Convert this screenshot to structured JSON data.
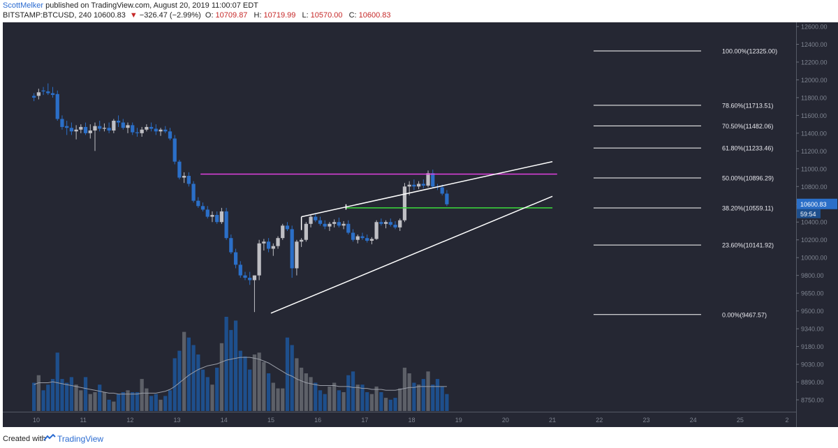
{
  "header": {
    "author": "ScottMelker",
    "published": "published on TradingView.com, August 20, 2019 11:00:07 EDT",
    "symbol": "BITSTAMP:BTCUSD, 240",
    "last": "10600.83",
    "change_arrow": "▼",
    "change": "−326.47 (−2.99%)",
    "o_label": "O:",
    "o_value": "10709.87",
    "h_label": "H:",
    "h_value": "10719.99",
    "l_label": "L:",
    "l_value": "10570.00",
    "c_label": "C:",
    "c_value": "10600.83"
  },
  "footer": {
    "created": "Created with",
    "brand": "TradingView"
  },
  "colors": {
    "background": "#252733",
    "bull": "#bfbfc4",
    "bear": "#2b6fc8",
    "fib": "#ffffff",
    "resistance": "#e040e0",
    "support": "#3cdc3c",
    "price_badge": "#2b6fc8"
  },
  "price_badge": {
    "price": "10600.83",
    "countdown": "59:54"
  },
  "chart_data": {
    "type": "candlestick",
    "symbol": "BITSTAMP:BTCUSD",
    "interval": "240",
    "x_tick_labels": [
      "10",
      "11",
      "12",
      "13",
      "14",
      "15",
      "16",
      "17",
      "18",
      "19",
      "20",
      "21",
      "22",
      "23",
      "24",
      "25",
      "2"
    ],
    "y_tick_labels": [
      "12600.00",
      "12400.00",
      "12200.00",
      "12000.00",
      "11800.00",
      "11600.00",
      "11400.00",
      "11200.00",
      "11000.00",
      "10800.00",
      "10600.00",
      "10400.00",
      "10200.00",
      "10000.00",
      "9800.00",
      "9650.00",
      "9500.00",
      "9340.00",
      "9180.00",
      "9030.00",
      "8890.00",
      "8750.00"
    ],
    "y_tick_values": [
      12600,
      12400,
      12200,
      12000,
      11800,
      11600,
      11400,
      11200,
      11000,
      10800,
      10600,
      10400,
      10200,
      10000,
      9800,
      9650,
      9500,
      9340,
      9180,
      9030,
      8890,
      8750
    ],
    "fib_levels": [
      {
        "label": "100.00%(12325.00)",
        "price": 12325.0
      },
      {
        "label": "78.60%(11713.51)",
        "price": 11713.51
      },
      {
        "label": "70.50%(11482.06)",
        "price": 11482.06
      },
      {
        "label": "61.80%(11233.46)",
        "price": 11233.46
      },
      {
        "label": "50.00%(10896.29)",
        "price": 10896.29
      },
      {
        "label": "38.20%(10559.11)",
        "price": 10559.11
      },
      {
        "label": "23.60%(10141.92)",
        "price": 10141.92
      },
      {
        "label": "0.00%(9467.57)",
        "price": 9467.57
      }
    ],
    "horizontal_lines": [
      {
        "name": "resistance",
        "price": 10940,
        "from_day": 13.5,
        "to_day": 21.1
      },
      {
        "name": "support",
        "price": 10560,
        "from_day": 16.6,
        "to_day": 21.0
      }
    ],
    "wedge": {
      "upper": [
        [
          15.65,
          10460
        ],
        [
          21.0,
          11080
        ]
      ],
      "lower": [
        [
          15.0,
          9480
        ],
        [
          21.0,
          10690
        ]
      ],
      "upper_extra": [
        [
          15.65,
          10460
        ],
        [
          15.65,
          10310
        ]
      ]
    },
    "candles": [
      [
        9.95,
        11820,
        11850,
        11760,
        11800
      ],
      [
        10.05,
        11820,
        11900,
        11780,
        11860
      ],
      [
        10.15,
        11880,
        11920,
        11830,
        11870
      ],
      [
        10.25,
        11870,
        11960,
        11830,
        11850
      ],
      [
        10.35,
        11850,
        11920,
        11800,
        11830
      ],
      [
        10.45,
        11840,
        11880,
        11540,
        11560
      ],
      [
        10.55,
        11560,
        11600,
        11440,
        11470
      ],
      [
        10.65,
        11480,
        11540,
        11380,
        11460
      ],
      [
        10.75,
        11460,
        11520,
        11380,
        11420
      ],
      [
        10.85,
        11420,
        11490,
        11330,
        11440
      ],
      [
        10.95,
        11440,
        11500,
        11400,
        11470
      ],
      [
        11.05,
        11470,
        11520,
        11380,
        11400
      ],
      [
        11.15,
        11400,
        11500,
        11340,
        11430
      ],
      [
        11.25,
        11430,
        11520,
        11200,
        11480
      ],
      [
        11.35,
        11480,
        11540,
        11420,
        11450
      ],
      [
        11.45,
        11450,
        11510,
        11420,
        11460
      ],
      [
        11.55,
        11460,
        11520,
        11400,
        11430
      ],
      [
        11.65,
        11430,
        11560,
        11400,
        11540
      ],
      [
        11.75,
        11540,
        11600,
        11470,
        11520
      ],
      [
        11.85,
        11520,
        11560,
        11440,
        11460
      ],
      [
        11.95,
        11460,
        11520,
        11400,
        11490
      ],
      [
        12.05,
        11490,
        11520,
        11380,
        11410
      ],
      [
        12.15,
        11410,
        11460,
        11360,
        11400
      ],
      [
        12.25,
        11400,
        11470,
        11360,
        11440
      ],
      [
        12.35,
        11440,
        11500,
        11420,
        11470
      ],
      [
        12.45,
        11470,
        11520,
        11420,
        11450
      ],
      [
        12.55,
        11450,
        11500,
        11380,
        11420
      ],
      [
        12.65,
        11420,
        11460,
        11370,
        11440
      ],
      [
        12.75,
        11440,
        11480,
        11400,
        11420
      ],
      [
        12.85,
        11420,
        11460,
        11320,
        11340
      ],
      [
        12.95,
        11340,
        11380,
        11050,
        11080
      ],
      [
        13.05,
        11080,
        11100,
        10880,
        10900
      ],
      [
        13.15,
        10900,
        10960,
        10840,
        10920
      ],
      [
        13.25,
        10920,
        10960,
        10800,
        10830
      ],
      [
        13.35,
        10830,
        10860,
        10620,
        10640
      ],
      [
        13.45,
        10640,
        10680,
        10560,
        10580
      ],
      [
        13.55,
        10580,
        10620,
        10520,
        10540
      ],
      [
        13.65,
        10540,
        10580,
        10440,
        10460
      ],
      [
        13.75,
        10460,
        10520,
        10400,
        10480
      ],
      [
        13.85,
        10480,
        10520,
        10380,
        10400
      ],
      [
        13.95,
        10400,
        10560,
        10380,
        10520
      ],
      [
        14.05,
        10520,
        10560,
        10200,
        10220
      ],
      [
        14.15,
        10220,
        10260,
        10040,
        10060
      ],
      [
        14.25,
        10060,
        10100,
        9880,
        9920
      ],
      [
        14.35,
        9920,
        9960,
        9780,
        9800
      ],
      [
        14.45,
        9800,
        9840,
        9760,
        9780
      ],
      [
        14.55,
        9780,
        9840,
        9720,
        9760
      ],
      [
        14.65,
        9760,
        9800,
        9490,
        9800
      ],
      [
        14.75,
        9800,
        10200,
        9760,
        10160
      ],
      [
        14.85,
        10160,
        10210,
        10080,
        10180
      ],
      [
        14.95,
        10180,
        10220,
        10060,
        10100
      ],
      [
        15.05,
        10100,
        10160,
        10020,
        10130
      ],
      [
        15.15,
        10130,
        10240,
        10100,
        10220
      ],
      [
        15.25,
        10220,
        10380,
        10200,
        10360
      ],
      [
        15.35,
        10360,
        10400,
        10300,
        10320
      ],
      [
        15.45,
        10320,
        10360,
        9780,
        9880
      ],
      [
        15.55,
        9880,
        10200,
        9800,
        10180
      ],
      [
        15.65,
        10180,
        10220,
        10120,
        10200
      ],
      [
        15.75,
        10200,
        10400,
        10180,
        10380
      ],
      [
        15.85,
        10380,
        10480,
        10340,
        10460
      ],
      [
        15.95,
        10460,
        10500,
        10400,
        10420
      ],
      [
        16.05,
        10420,
        10460,
        10360,
        10380
      ],
      [
        16.15,
        10380,
        10420,
        10320,
        10350
      ],
      [
        16.25,
        10350,
        10400,
        10300,
        10380
      ],
      [
        16.35,
        10380,
        10430,
        10340,
        10400
      ],
      [
        16.45,
        10400,
        10450,
        10340,
        10360
      ],
      [
        16.55,
        10360,
        10410,
        10320,
        10380
      ],
      [
        16.65,
        10380,
        10420,
        10260,
        10280
      ],
      [
        16.75,
        10280,
        10320,
        10180,
        10200
      ],
      [
        16.85,
        10200,
        10260,
        10160,
        10240
      ],
      [
        16.95,
        10240,
        10280,
        10200,
        10220
      ],
      [
        17.05,
        10220,
        10260,
        10170,
        10190
      ],
      [
        17.15,
        10190,
        10230,
        10150,
        10210
      ],
      [
        17.25,
        10210,
        10420,
        10200,
        10400
      ],
      [
        17.35,
        10400,
        10440,
        10360,
        10380
      ],
      [
        17.45,
        10380,
        10420,
        10330,
        10400
      ],
      [
        17.55,
        10400,
        10440,
        10350,
        10370
      ],
      [
        17.65,
        10370,
        10410,
        10320,
        10340
      ],
      [
        17.75,
        10340,
        10440,
        10300,
        10420
      ],
      [
        17.85,
        10420,
        10840,
        10400,
        10800
      ],
      [
        17.95,
        10800,
        10860,
        10700,
        10820
      ],
      [
        18.05,
        10820,
        10880,
        10760,
        10800
      ],
      [
        18.15,
        10800,
        10860,
        10770,
        10830
      ],
      [
        18.25,
        10830,
        10880,
        10780,
        10810
      ],
      [
        18.35,
        10810,
        10980,
        10790,
        10950
      ],
      [
        18.45,
        10950,
        10990,
        10780,
        10800
      ],
      [
        18.55,
        10800,
        10830,
        10760,
        10790
      ],
      [
        18.65,
        10790,
        10820,
        10700,
        10720
      ],
      [
        18.75,
        10720,
        10760,
        10580,
        10600
      ]
    ],
    "volume_ma_note": "volume histogram with moving average line",
    "volume": [
      0.3,
      0.38,
      0.22,
      0.28,
      0.34,
      0.62,
      0.34,
      0.3,
      0.36,
      0.28,
      0.22,
      0.36,
      0.18,
      0.2,
      0.28,
      0.2,
      0.12,
      0.1,
      0.18,
      0.2,
      0.22,
      0.2,
      0.2,
      0.34,
      0.24,
      0.16,
      0.18,
      0.12,
      0.16,
      0.22,
      0.56,
      0.64,
      0.84,
      0.78,
      0.7,
      0.6,
      0.44,
      0.36,
      0.28,
      0.46,
      0.72,
      1.0,
      0.86,
      0.96,
      0.64,
      0.58,
      0.44,
      0.6,
      0.62,
      0.52,
      0.4,
      0.3,
      0.24,
      0.24,
      0.78,
      0.7,
      0.56,
      0.46,
      0.4,
      0.36,
      0.3,
      0.22,
      0.18,
      0.26,
      0.3,
      0.22,
      0.2,
      0.38,
      0.42,
      0.28,
      0.28,
      0.2,
      0.18,
      0.26,
      0.2,
      0.14,
      0.12,
      0.14,
      0.24,
      0.46,
      0.4,
      0.3,
      0.28,
      0.34,
      0.42,
      0.28,
      0.34,
      0.26,
      0.18
    ],
    "volume_ma": [
      0.28,
      0.3,
      0.3,
      0.3,
      0.31,
      0.3,
      0.29,
      0.28,
      0.27,
      0.26,
      0.25,
      0.24,
      0.23,
      0.22,
      0.21,
      0.2,
      0.19,
      0.19,
      0.18,
      0.18,
      0.18,
      0.18,
      0.18,
      0.19,
      0.19,
      0.19,
      0.19,
      0.2,
      0.21,
      0.23,
      0.26,
      0.3,
      0.34,
      0.38,
      0.41,
      0.44,
      0.46,
      0.48,
      0.49,
      0.5,
      0.52,
      0.54,
      0.55,
      0.56,
      0.57,
      0.57,
      0.57,
      0.56,
      0.55,
      0.53,
      0.51,
      0.48,
      0.45,
      0.42,
      0.39,
      0.37,
      0.34,
      0.32,
      0.3,
      0.29,
      0.28,
      0.27,
      0.27,
      0.27,
      0.27,
      0.26,
      0.26,
      0.26,
      0.25,
      0.25,
      0.24,
      0.24,
      0.23,
      0.23,
      0.23,
      0.22,
      0.22,
      0.22,
      0.23,
      0.24,
      0.25,
      0.25,
      0.26,
      0.26,
      0.26,
      0.26,
      0.26,
      0.26,
      0.26
    ]
  }
}
